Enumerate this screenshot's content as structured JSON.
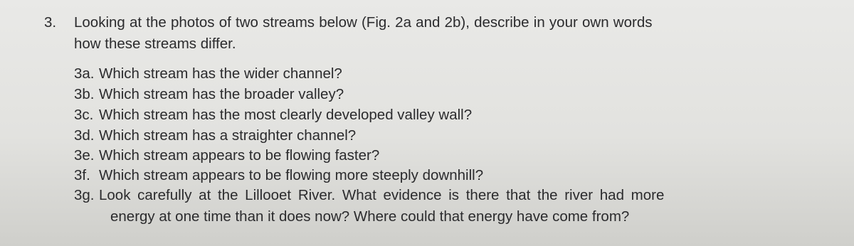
{
  "question": {
    "number": "3.",
    "lines": [
      "Looking at the photos of two streams below (Fig. 2a and 2b), describe in your own words",
      "how these streams differ."
    ]
  },
  "items": [
    {
      "label": "3a.",
      "lines": [
        "Which stream has the wider channel?"
      ]
    },
    {
      "label": "3b.",
      "lines": [
        "Which stream has the broader valley?"
      ]
    },
    {
      "label": "3c.",
      "lines": [
        "Which stream has the most clearly developed valley wall?"
      ]
    },
    {
      "label": "3d.",
      "lines": [
        "Which stream has a straighter channel?"
      ]
    },
    {
      "label": "3e.",
      "lines": [
        "Which stream appears to be flowing faster?"
      ]
    },
    {
      "label": "3f.",
      "lines": [
        "Which stream appears to be flowing more steeply downhill?"
      ]
    },
    {
      "label": "3g.",
      "lines": [
        "Look carefully at the Lillooet River. What evidence is there that the river had more",
        "energy at one time than it does now? Where could that energy have come from?"
      ]
    }
  ]
}
